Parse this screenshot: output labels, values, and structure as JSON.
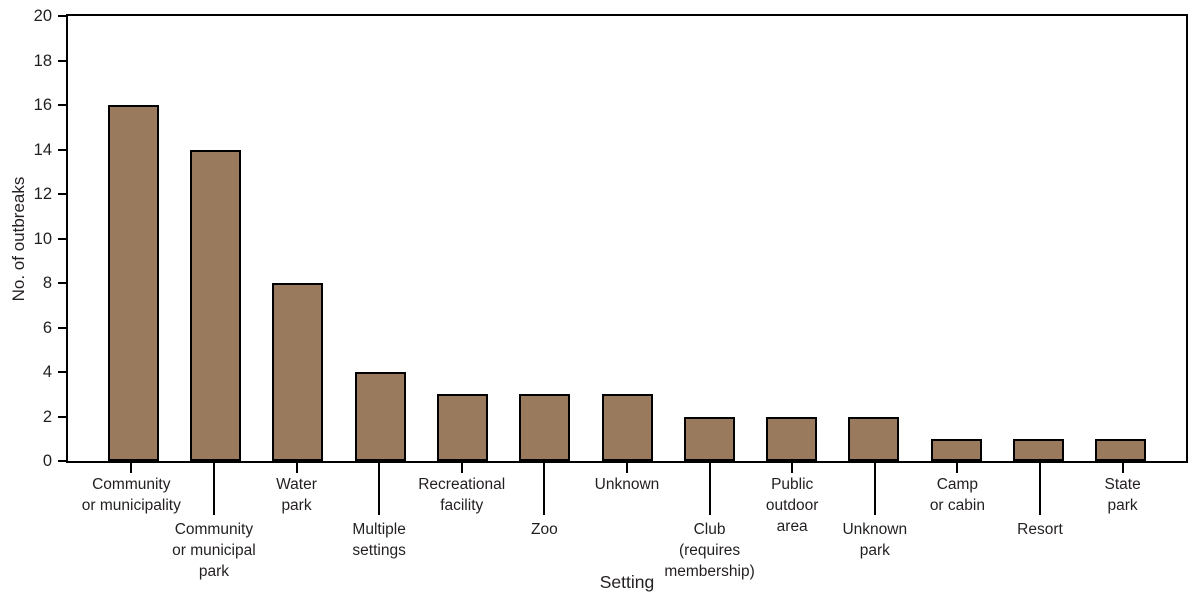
{
  "chart_data": {
    "type": "bar",
    "title": "",
    "xlabel": "Setting",
    "ylabel": "No. of outbreaks",
    "ylim": [
      0,
      20
    ],
    "ytick_step": 2,
    "grid": false,
    "legend_position": "none",
    "bar_color": "#997a5d",
    "bar_border_color": "#000000",
    "axis_color": "#000000",
    "text_color": "#231f20",
    "categories": [
      "Community\nor municipality",
      "Community\nor municipal\npark",
      "Water\npark",
      "Multiple\nsettings",
      "Recreational\nfacility",
      "Zoo",
      "Unknown",
      "Club\n(requires\nmembership)",
      "Public\noutdoor\narea",
      "Unknown\npark",
      "Camp\nor cabin",
      "Resort",
      "State\npark"
    ],
    "values": [
      16,
      14,
      8,
      4,
      3,
      3,
      3,
      2,
      2,
      2,
      1,
      1,
      1
    ]
  }
}
